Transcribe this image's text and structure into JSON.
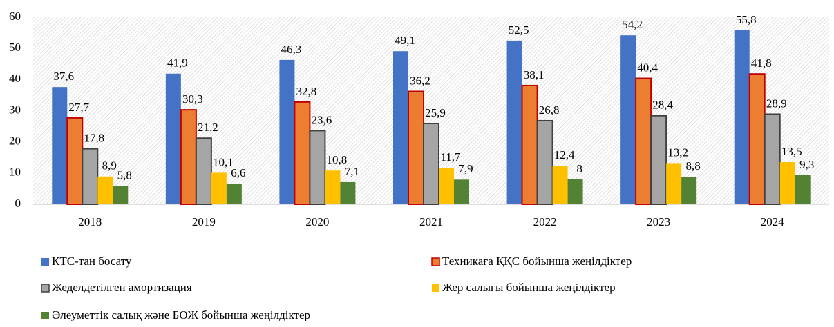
{
  "chart_data": {
    "type": "bar",
    "categories": [
      "2018",
      "2019",
      "2020",
      "2021",
      "2022",
      "2023",
      "2024"
    ],
    "series": [
      {
        "name": "КТС-тан босату",
        "color": "#4472c4",
        "values": [
          37.6,
          41.9,
          46.3,
          49.1,
          52.5,
          54.2,
          55.8
        ],
        "value_labels": [
          "37,6",
          "41,9",
          "46,3",
          "49,1",
          "52,5",
          "54,2",
          "55,8"
        ]
      },
      {
        "name": "Техникаға ҚҚС бойынша жеңілдіктер",
        "color": "#ed7d31",
        "border": "#c00000",
        "values": [
          27.7,
          30.3,
          32.8,
          36.2,
          38.1,
          40.4,
          41.8
        ],
        "value_labels": [
          "27,7",
          "30,3",
          "32,8",
          "36,2",
          "38,1",
          "40,4",
          "41,8"
        ]
      },
      {
        "name": "Жеделдетілген амортизация",
        "color": "#a5a5a5",
        "border": "#404040",
        "values": [
          17.8,
          21.2,
          23.6,
          25.9,
          26.8,
          28.4,
          28.9
        ],
        "value_labels": [
          "17,8",
          "21,2",
          "23,6",
          "25,9",
          "26,8",
          "28,4",
          "28,9"
        ]
      },
      {
        "name": "Жер салығы бойынша жеңілдіктер",
        "color": "#ffc000",
        "values": [
          8.9,
          10.1,
          10.8,
          11.7,
          12.4,
          13.2,
          13.5
        ],
        "value_labels": [
          "8,9",
          "10,1",
          "10,8",
          "11,7",
          "12,4",
          "13,2",
          "13,5"
        ]
      },
      {
        "name": "Әлеуметтік салық және БӨЖ бойынша жеңілдіктер",
        "color": "#548235",
        "values": [
          5.8,
          6.6,
          7.1,
          7.9,
          8,
          8.8,
          9.3
        ],
        "value_labels": [
          "5,8",
          "6,6",
          "7,1",
          "7,9",
          "8",
          "8,8",
          "9,3"
        ]
      }
    ],
    "ylim": [
      0,
      60
    ],
    "yticks": [
      0,
      10,
      20,
      30,
      40,
      50,
      60
    ],
    "grid": false
  }
}
